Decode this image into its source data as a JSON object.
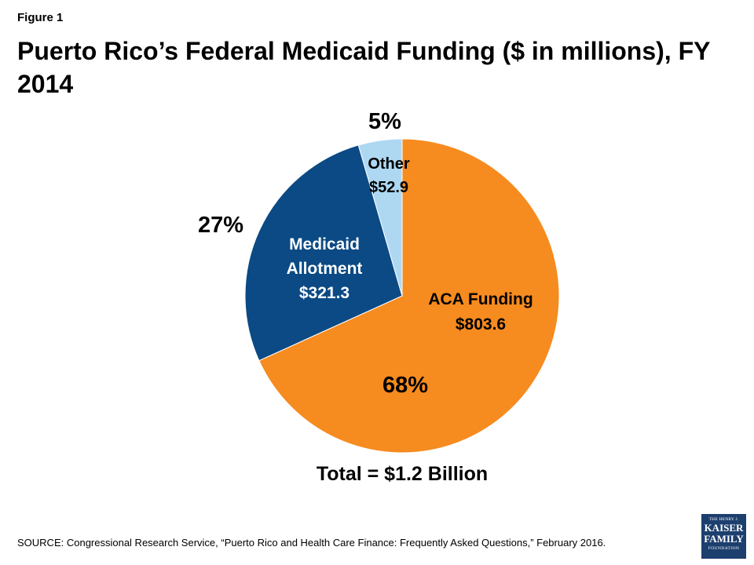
{
  "figure_label": "Figure 1",
  "title": "Puerto Rico’s Federal Medicaid Funding ($ in millions), FY 2014",
  "total_label": "Total = $1.2 Billion",
  "source": "SOURCE: Congressional Research Service, “Puerto  Rico and Health Care Finance: Frequently Asked Questions,” February 2016.",
  "logo": {
    "line1": "THE HENRY J.",
    "line2": "KAISER",
    "line3": "FAMILY",
    "line4": "FOUNDATION"
  },
  "chart_data": {
    "type": "pie",
    "title": "Puerto Rico’s Federal Medicaid Funding ($ in millions), FY 2014",
    "unit": "$ in millions",
    "slices": [
      {
        "name": "ACA Funding",
        "label_lines": [
          "ACA Funding",
          "$803.6"
        ],
        "value": 803.6,
        "percent_label": "68%",
        "color": "#f68b1f",
        "label_color": "#000000"
      },
      {
        "name": "Medicaid Allotment",
        "label_lines": [
          "Medicaid",
          "Allotment",
          "$321.3"
        ],
        "value": 321.3,
        "percent_label": "27%",
        "color": "#0b4a84",
        "label_color": "#ffffff"
      },
      {
        "name": "Other",
        "label_lines": [
          "Other",
          "$52.9"
        ],
        "value": 52.9,
        "percent_label": "5%",
        "color": "#aed8f2",
        "label_color": "#000000"
      }
    ],
    "total": "Total = $1.2 Billion"
  }
}
